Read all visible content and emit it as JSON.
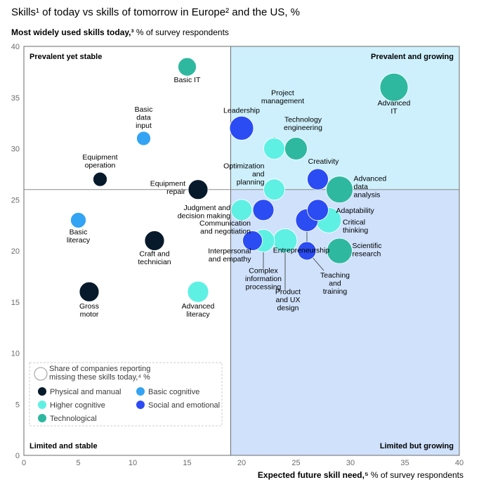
{
  "chart_data": {
    "type": "scatter",
    "title": "Skills¹ of today vs skills of tomorrow in Europe² and the US, %",
    "ylabel": {
      "bold": "Most widely used skills today,³",
      "rest": " % of survey respondents"
    },
    "xlabel": {
      "bold": "Expected future skill need,⁵",
      "rest": " % of survey respondents"
    },
    "xlim": [
      0,
      40
    ],
    "ylim": [
      0,
      40
    ],
    "xticks": [
      0,
      5,
      10,
      15,
      20,
      25,
      30,
      35,
      40
    ],
    "yticks": [
      0,
      5,
      10,
      15,
      20,
      25,
      30,
      35,
      40
    ],
    "quadrant_split": {
      "x": 19,
      "y": 26
    },
    "quadrants": {
      "top_left": "Prevalent yet stable",
      "top_right": "Prevalent and growing",
      "bottom_left": "Limited and stable",
      "bottom_right": "Limited but growing"
    },
    "colors": {
      "Physical and manual": "#071a2b",
      "Basic cognitive": "#33a3f4",
      "Higher cognitive": "#5ff0e4",
      "Social and emotional": "#2b4cf2",
      "Technological": "#2fb8a0",
      "quadrant_top_right_fill": "#cdf0fc",
      "quadrant_bottom_right_fill": "#cfe1fb"
    },
    "size_legend": "Share of companies reporting missing these skills today,⁴ %",
    "legend": [
      "Physical and manual",
      "Basic cognitive",
      "Higher cognitive",
      "Social and emotional",
      "Technological"
    ],
    "points": [
      {
        "label": "Basic IT",
        "x": 15,
        "y": 38,
        "size": 13,
        "category": "Technological"
      },
      {
        "label": "Basic data input",
        "x": 11,
        "y": 31,
        "size": 10,
        "category": "Basic cognitive"
      },
      {
        "label": "Equipment operation",
        "x": 7,
        "y": 27,
        "size": 10,
        "category": "Physical and manual"
      },
      {
        "label": "Equipment repair",
        "x": 16,
        "y": 26,
        "size": 14,
        "category": "Physical and manual"
      },
      {
        "label": "Basic literacy",
        "x": 5,
        "y": 23,
        "size": 11,
        "category": "Basic cognitive"
      },
      {
        "label": "Craft and technician",
        "x": 12,
        "y": 21,
        "size": 14,
        "category": "Physical and manual"
      },
      {
        "label": "Gross motor",
        "x": 6,
        "y": 16,
        "size": 14,
        "category": "Physical and manual"
      },
      {
        "label": "Advanced literacy",
        "x": 16,
        "y": 16,
        "size": 15,
        "category": "Higher cognitive"
      },
      {
        "label": "Leadership",
        "x": 20,
        "y": 32,
        "size": 17,
        "category": "Social and emotional"
      },
      {
        "label": "Project management",
        "x": 23,
        "y": 30,
        "size": 15,
        "category": "Higher cognitive"
      },
      {
        "label": "Technology engineering",
        "x": 25,
        "y": 30,
        "size": 16,
        "category": "Technological"
      },
      {
        "label": "Advanced IT",
        "x": 34,
        "y": 36,
        "size": 20,
        "category": "Technological"
      },
      {
        "label": "Optimization and planning",
        "x": 23,
        "y": 26,
        "size": 15,
        "category": "Higher cognitive"
      },
      {
        "label": "Creativity",
        "x": 27,
        "y": 27,
        "size": 15,
        "category": "Social and emotional"
      },
      {
        "label": "Advanced data analysis",
        "x": 29,
        "y": 26,
        "size": 19,
        "category": "Technological"
      },
      {
        "label": "Judgment and decision making",
        "x": 20,
        "y": 24,
        "size": 15,
        "category": "Higher cognitive"
      },
      {
        "label": "Communication and negotiation",
        "x": 22,
        "y": 24,
        "size": 15,
        "category": "Social and emotional"
      },
      {
        "label": "Adaptability",
        "x": 27,
        "y": 24,
        "size": 15,
        "category": "Social and emotional"
      },
      {
        "label": "Critical thinking",
        "x": 28,
        "y": 23,
        "size": 18,
        "category": "Higher cognitive"
      },
      {
        "label": "Interpersonal and empathy",
        "x": 21,
        "y": 21,
        "size": 14,
        "category": "Social and emotional"
      },
      {
        "label": "Complex information processing",
        "x": 22,
        "y": 21,
        "size": 16,
        "category": "Higher cognitive"
      },
      {
        "label": "Product and UX design",
        "x": 24,
        "y": 21,
        "size": 17,
        "category": "Higher cognitive"
      },
      {
        "label": "Entrepreneurship",
        "x": 26,
        "y": 23,
        "size": 16,
        "category": "Social and emotional"
      },
      {
        "label": "Teaching and training",
        "x": 26,
        "y": 20,
        "size": 13,
        "category": "Social and emotional"
      },
      {
        "label": "Scientific research",
        "x": 29,
        "y": 20,
        "size": 18,
        "category": "Technological"
      }
    ]
  }
}
